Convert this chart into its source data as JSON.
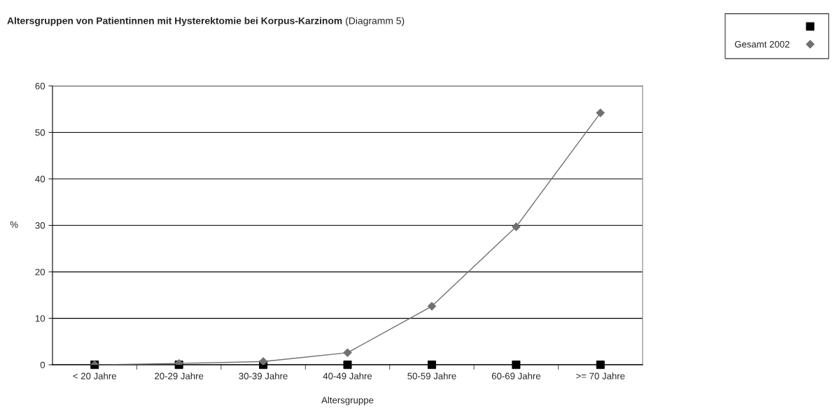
{
  "chart_data": {
    "type": "line",
    "title": "Altersgruppen von Patientinnen mit Hysterektomie bei Korpus-Karzinom",
    "subtitle": "(Diagramm 5)",
    "xlabel": "Altersgruppe",
    "ylabel": "%",
    "categories": [
      "< 20 Jahre",
      "20-29 Jahre",
      "30-39 Jahre",
      "40-49 Jahre",
      "50-59 Jahre",
      "60-69 Jahre",
      ">= 70 Jahre"
    ],
    "series": [
      {
        "type": "scatter",
        "marker": "square",
        "color": "#000000",
        "values": [
          0,
          0,
          0,
          0,
          0,
          0,
          0
        ]
      },
      {
        "name": "Gesamt 2002",
        "marker": "diamond",
        "color": "#707070",
        "values": [
          0,
          0.3,
          0.7,
          2.6,
          12.6,
          29.7,
          54.2
        ]
      }
    ],
    "ylim": [
      0,
      60
    ],
    "yticks": [
      0,
      10,
      20,
      30,
      40,
      50,
      60
    ],
    "grid": "y",
    "legend": "top right"
  }
}
